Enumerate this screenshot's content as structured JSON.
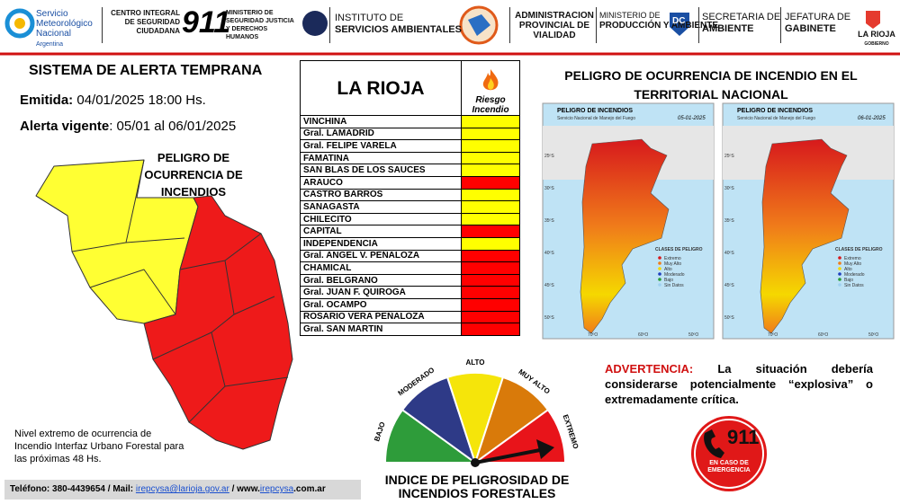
{
  "header": {
    "smn": "Servicio Meteorológico Nacional",
    "smn_country": "Argentina",
    "centro": "CENTRO INTEGRAL DE SEGURIDAD CIUDADANA",
    "centro_number": "911",
    "ministerio": "MINISTERIO DE SEGURIDAD JUSTICIA Y DERECHOS HUMANOS",
    "instituto_1": "INSTITUTO DE",
    "instituto_2": "SERVICIOS AMBIENTALES",
    "vialidad": "ADMINISTRACION PROVINCIAL DE VIALIDAD",
    "produccion_1": "MINISTERIO DE",
    "produccion_2": "PRODUCCIÓN Y AMBIENTE",
    "dc": "DC",
    "secretaria_1": "SECRETARIA DE",
    "secretaria_2": "AMBIENTE",
    "jefatura_1": "JEFATURA DE",
    "jefatura_2": "GABINETE",
    "gobierno": "LA RIOJA",
    "gobierno_sub": "GOBIERNO"
  },
  "alert": {
    "title": "SISTEMA DE ALERTA TEMPRANA",
    "issued_label": "Emitida:",
    "issued": "04/01/2025  18:00 Hs.",
    "valid_label": "Alerta vigente",
    "valid": ": 05/01 al 06/01/2025",
    "map_title": "PELIGRO DE OCURRENCIA DE INCENDIOS",
    "note": "Nivel extremo de ocurrencia de Incendio Interfaz Urbano Forestal para las próximas 48 Hs."
  },
  "table": {
    "title": "LA RIOJA",
    "risk_header": "Riesgo Incendio",
    "rows": [
      {
        "name": "VINCHINA",
        "color": "#ffff00"
      },
      {
        "name": "Gral. LAMADRID",
        "color": "#ffff00"
      },
      {
        "name": "Gral. FELIPE VARELA",
        "color": "#ffff00"
      },
      {
        "name": "FAMATINA",
        "color": "#ffff00"
      },
      {
        "name": "SAN BLAS DE LOS SAUCES",
        "color": "#ffff00"
      },
      {
        "name": "ARAUCO",
        "color": "#ff0000"
      },
      {
        "name": "CASTRO BARROS",
        "color": "#ffff00"
      },
      {
        "name": "SANAGASTA",
        "color": "#ffff00"
      },
      {
        "name": "CHILECITO",
        "color": "#ffff00"
      },
      {
        "name": "CAPITAL",
        "color": "#ff0000"
      },
      {
        "name": "INDEPENDENCIA",
        "color": "#ffff00"
      },
      {
        "name": "Gral. ANGEL V.  PEÑALOZA",
        "color": "#ff0000"
      },
      {
        "name": "CHAMICAL",
        "color": "#ff0000"
      },
      {
        "name": "Gral. BELGRANO",
        "color": "#ff0000"
      },
      {
        "name": "Gral. JUAN F. QUIROGA",
        "color": "#ff0000"
      },
      {
        "name": "Gral. OCAMPO",
        "color": "#ff0000"
      },
      {
        "name": "ROSARIO VERA PEÑALOZA",
        "color": "#ff0000"
      },
      {
        "name": "Gral. SAN MARTIN",
        "color": "#ff0000"
      }
    ]
  },
  "national": {
    "title": "PELIGRO DE OCURRENCIA DE INCENDIO EN EL TERRITORIAL NACIONAL",
    "maps": [
      {
        "title": "PELIGRO DE INCENDIOS",
        "source": "Servicio Nacional de Manejo del Fuego",
        "date": "05-01-2025"
      },
      {
        "title": "PELIGRO DE INCENDIOS",
        "source": "Servicio Nacional de Manejo del Fuego",
        "date": "06-01-2025"
      }
    ],
    "legend_title": "CLASES DE PELIGRO",
    "legend": [
      {
        "label": "Extremo",
        "color": "#d7191c"
      },
      {
        "label": "Muy Alto",
        "color": "#f07c1a"
      },
      {
        "label": "Alto",
        "color": "#f5d800"
      },
      {
        "label": "Moderado",
        "color": "#1f3fbf"
      },
      {
        "label": "Bajo",
        "color": "#2a9d3a"
      },
      {
        "label": "Sin Datos",
        "color": "#9fd0f0"
      }
    ],
    "lon_labels": [
      "70ºO",
      "60ºO",
      "50ºO"
    ],
    "lat_labels": [
      "25ºS",
      "30ºS",
      "35ºS",
      "40ºS",
      "45ºS",
      "50ºS"
    ]
  },
  "gauge": {
    "labels": [
      "BAJO",
      "MODERADO",
      "ALTO",
      "MUY ALTO",
      "EXTREMO"
    ],
    "colors": [
      "#2e9c3a",
      "#2e3a87",
      "#f5e50a",
      "#d97a0a",
      "#e8141a"
    ],
    "title_1": "INDICE DE PELIGROSIDAD DE",
    "title_2": "INCENDIOS FORESTALES"
  },
  "warning": {
    "label": "ADVERTENCIA:",
    "text": "La situación debería considerarse potencialmente “explosiva” o extremadamente crítica."
  },
  "emergency": {
    "number": "911",
    "text": "EN CASO DE EMERGENCIA"
  },
  "footer": {
    "phone_label": "Teléfono:",
    "phone": "380-4439654",
    "mail_label": "/ Mail:",
    "mail": "irepcysa@larioja.gov.ar",
    "web_prefix": "/ www.",
    "web": "irepcysa",
    "web_suffix": ".com.ar"
  }
}
